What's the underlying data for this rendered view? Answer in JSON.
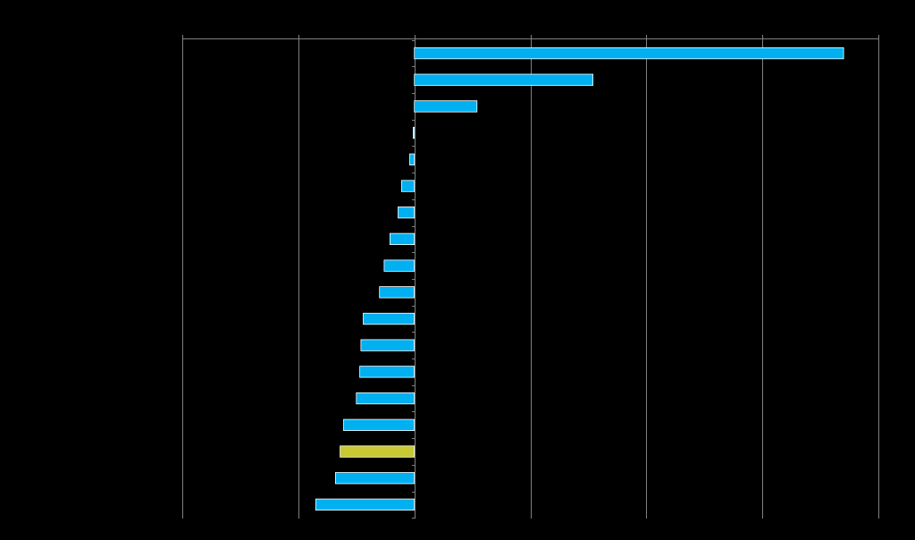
{
  "chart_data": {
    "type": "bar",
    "orientation": "horizontal",
    "title": "",
    "xlabel": "",
    "ylabel": "",
    "xlim": [
      -20,
      40
    ],
    "x_gridlines": [
      -20,
      -10,
      0,
      10,
      20,
      30,
      40
    ],
    "grid": true,
    "legend": "none",
    "categories": [
      "",
      "",
      "",
      "",
      "",
      "",
      "",
      "",
      "",
      "",
      "",
      "",
      "",
      "",
      "",
      "",
      "",
      ""
    ],
    "values": [
      37.0,
      15.4,
      5.4,
      -0.1,
      -0.4,
      -1.1,
      -1.4,
      -2.1,
      -2.6,
      -3.0,
      -4.4,
      -4.6,
      -4.7,
      -5.0,
      -6.1,
      -6.4,
      -6.8,
      -8.5
    ],
    "highlight_index": 15,
    "colors": {
      "bar": "#00b0f0",
      "highlight": "#c8c832",
      "bar_edge": "#ffffff",
      "grid": "#808080",
      "background": "#000000"
    }
  }
}
